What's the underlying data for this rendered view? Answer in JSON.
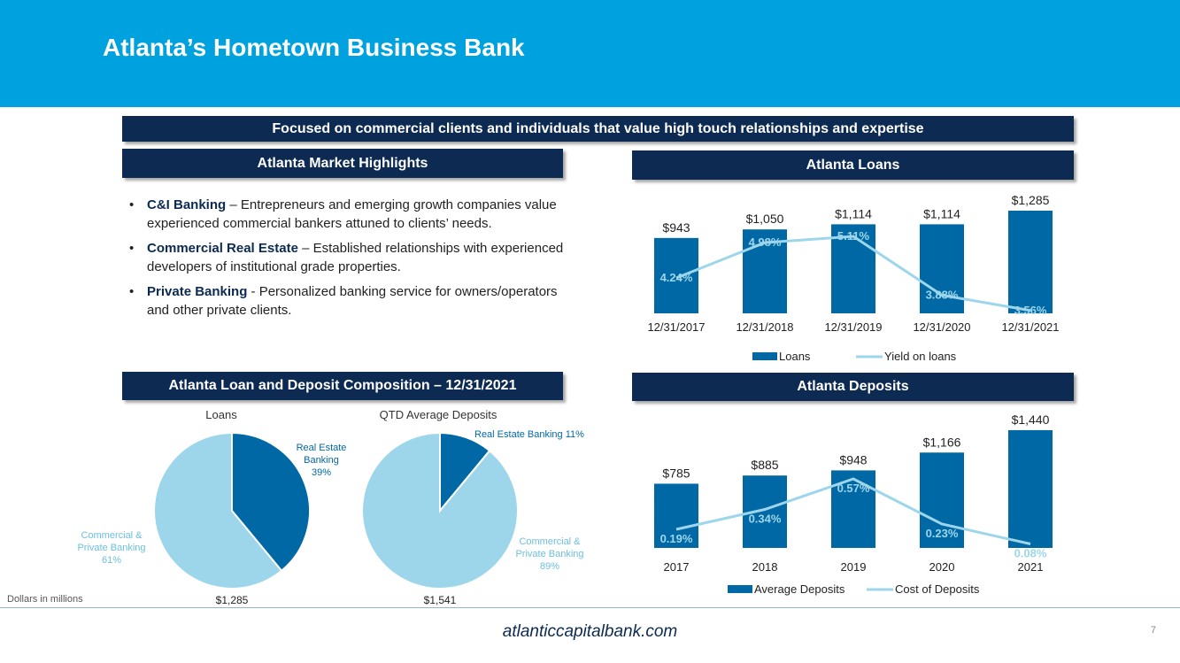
{
  "header": {
    "title": "Atlanta’s Hometown Business Bank"
  },
  "tagline": "Focused on commercial clients and individuals that value high touch relationships and expertise",
  "highlights": {
    "title": "Atlanta Market Highlights",
    "items": [
      {
        "bold": "C&I Banking",
        "text": " – Entrepreneurs and emerging growth companies value experienced commercial bankers attuned to clients’ needs."
      },
      {
        "bold": "Commercial Real Estate",
        "text": " – Established relationships with experienced developers of institutional grade properties."
      },
      {
        "bold": "Private Banking",
        "text": " - Personalized banking service for owners/operators and other private clients."
      }
    ]
  },
  "composition": {
    "title": "Atlanta Loan and Deposit Composition – 12/31/2021",
    "loans_title": "Loans",
    "deposits_title": "QTD Average Deposits"
  },
  "loans_section": {
    "title": "Atlanta Loans"
  },
  "deposits_section": {
    "title": "Atlanta Deposits"
  },
  "colors": {
    "navy": "#0c2a52",
    "blue": "#0068a5",
    "light": "#9dd6ea",
    "banner": "#00a1df"
  },
  "chart_data": [
    {
      "id": "loans",
      "type": "bar+line",
      "categories": [
        "12/31/2017",
        "12/31/2018",
        "12/31/2019",
        "12/31/2020",
        "12/31/2021"
      ],
      "series": [
        {
          "name": "Loans",
          "type": "bar",
          "values": [
            943,
            1050,
            1114,
            1114,
            1285
          ],
          "labels": [
            "$943",
            "$1,050",
            "$1,114",
            "$1,114",
            "$1,285"
          ]
        },
        {
          "name": "Yield on loans",
          "type": "line",
          "values": [
            4.24,
            4.98,
            5.11,
            3.88,
            3.56
          ],
          "labels": [
            "4.24%",
            "4.98%",
            "5.11%",
            "3.88%",
            "3.56%"
          ]
        }
      ]
    },
    {
      "id": "deposits",
      "type": "bar+line",
      "categories": [
        "2017",
        "2018",
        "2019",
        "2020",
        "2021"
      ],
      "series": [
        {
          "name": "Average Deposits",
          "type": "bar",
          "values": [
            785,
            885,
            948,
            1166,
            1440
          ],
          "labels": [
            "$785",
            "$885",
            "$948",
            "$1,166",
            "$1,440"
          ]
        },
        {
          "name": "Cost of Deposits",
          "type": "line",
          "values": [
            0.19,
            0.34,
            0.57,
            0.23,
            0.08
          ],
          "labels": [
            "0.19%",
            "0.34%",
            "0.57%",
            "0.23%",
            "0.08%"
          ]
        }
      ]
    },
    {
      "id": "loan-pie",
      "type": "pie",
      "title": "Loans",
      "total": "$1,285",
      "slices": [
        {
          "label": "Real Estate Banking 39%",
          "value": 39
        },
        {
          "label": "Commercial & Private Banking 61%",
          "value": 61
        }
      ]
    },
    {
      "id": "deposit-pie",
      "type": "pie",
      "title": "QTD Average Deposits",
      "total": "$1,541",
      "slices": [
        {
          "label": "Real Estate Banking 11%",
          "value": 11
        },
        {
          "label": "Commercial & Private Banking 89%",
          "value": 89
        }
      ]
    }
  ],
  "footer": {
    "footnote": "Dollars in millions",
    "site": "atlanticcapitalbank.com",
    "page": "7"
  }
}
